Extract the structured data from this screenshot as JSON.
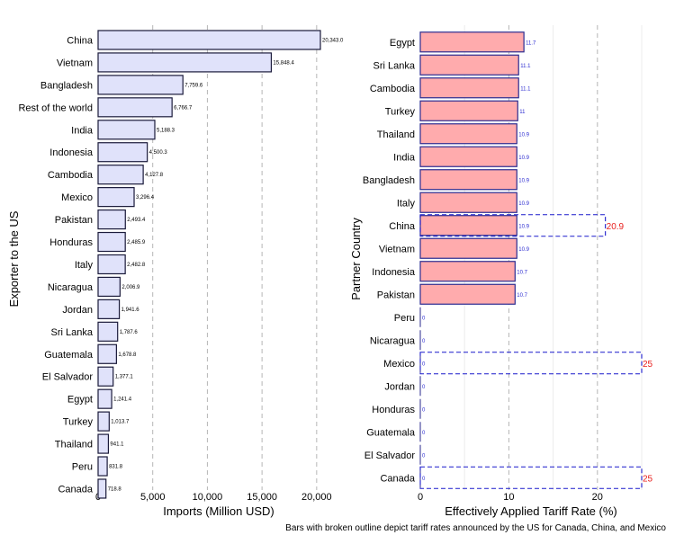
{
  "chart_data": [
    {
      "type": "bar",
      "orientation": "horizontal",
      "xlabel": "Imports (Million USD)",
      "ylabel": "Exporter to the US",
      "xlim": [
        0,
        20343
      ],
      "xticks": [
        0,
        5000,
        10000,
        15000,
        20000
      ],
      "xtick_labels": [
        "0",
        "5,000",
        "10,000",
        "15,000",
        "20,000"
      ],
      "grid": "vertical dashed",
      "categories": [
        "China",
        "Vietnam",
        "Bangladesh",
        "Rest of the world",
        "India",
        "Indonesia",
        "Cambodia",
        "Mexico",
        "Pakistan",
        "Honduras",
        "Italy",
        "Nicaragua",
        "Jordan",
        "Sri Lanka",
        "Guatemala",
        "El Salvador",
        "Egypt",
        "Turkey",
        "Thailand",
        "Peru",
        "Canada"
      ],
      "values": [
        20343.0,
        15848.4,
        7759.6,
        6766.7,
        5188.3,
        4500.3,
        4127.8,
        3296.4,
        2493.4,
        2485.9,
        2482.8,
        2006.9,
        1941.6,
        1787.6,
        1678.8,
        1377.1,
        1241.4,
        1013.7,
        941.1,
        831.8,
        718.8
      ],
      "value_labels": [
        "20,343.0",
        "15,848.4",
        "7,759.6",
        "6,766.7",
        "5,188.3",
        "4,500.3",
        "4,127.8",
        "3,296.4",
        "2,493.4",
        "2,485.9",
        "2,482.8",
        "2,006.9",
        "1,941.6",
        "1,787.6",
        "1,678.8",
        "1,377.1",
        "1,241.4",
        "1,013.7",
        "941.1",
        "831.8",
        "718.8"
      ],
      "bar_color": "#e0e2fa",
      "edge_color": "#1a1a3a"
    },
    {
      "type": "bar",
      "orientation": "horizontal",
      "xlabel": "Effectively Applied Tariff Rate (%)",
      "ylabel": "Partner Country",
      "xlim": [
        0,
        25
      ],
      "xticks": [
        0,
        10,
        20
      ],
      "xtick_labels": [
        "0",
        "10",
        "20"
      ],
      "grid": "vertical dashed",
      "categories": [
        "Egypt",
        "Sri Lanka",
        "Cambodia",
        "Turkey",
        "Thailand",
        "India",
        "Bangladesh",
        "Italy",
        "China",
        "Vietnam",
        "Indonesia",
        "Pakistan",
        "Peru",
        "Nicaragua",
        "Mexico",
        "Jordan",
        "Honduras",
        "Guatemala",
        "El Salvador",
        "Canada"
      ],
      "values": [
        11.7,
        11.1,
        11.1,
        11,
        10.9,
        10.9,
        10.9,
        10.9,
        10.9,
        10.9,
        10.7,
        10.7,
        0,
        0,
        0,
        0,
        0,
        0,
        0,
        0
      ],
      "value_labels": [
        "11.7",
        "11.1",
        "11.1",
        "11",
        "10.9",
        "10.9",
        "10.9",
        "10.9",
        "10.9",
        "10.9",
        "10.7",
        "10.7",
        "0",
        "0",
        "0",
        "0",
        "0",
        "0",
        "0",
        "0"
      ],
      "announced": [
        {
          "category": "China",
          "value": 20.9,
          "label": "20.9"
        },
        {
          "category": "Mexico",
          "value": 25,
          "label": "25"
        },
        {
          "category": "Canada",
          "value": 25,
          "label": "25"
        }
      ],
      "bar_color": "#ffabad",
      "edge_color": "#2b2b8f",
      "value_label_color": "#2b2bd0",
      "announced_color": "#e8201e",
      "announced_edge_color": "#1a1acc"
    }
  ],
  "caption": "Bars with broken outline depict tariff rates announced by the US for Canada, China, and Mexico"
}
